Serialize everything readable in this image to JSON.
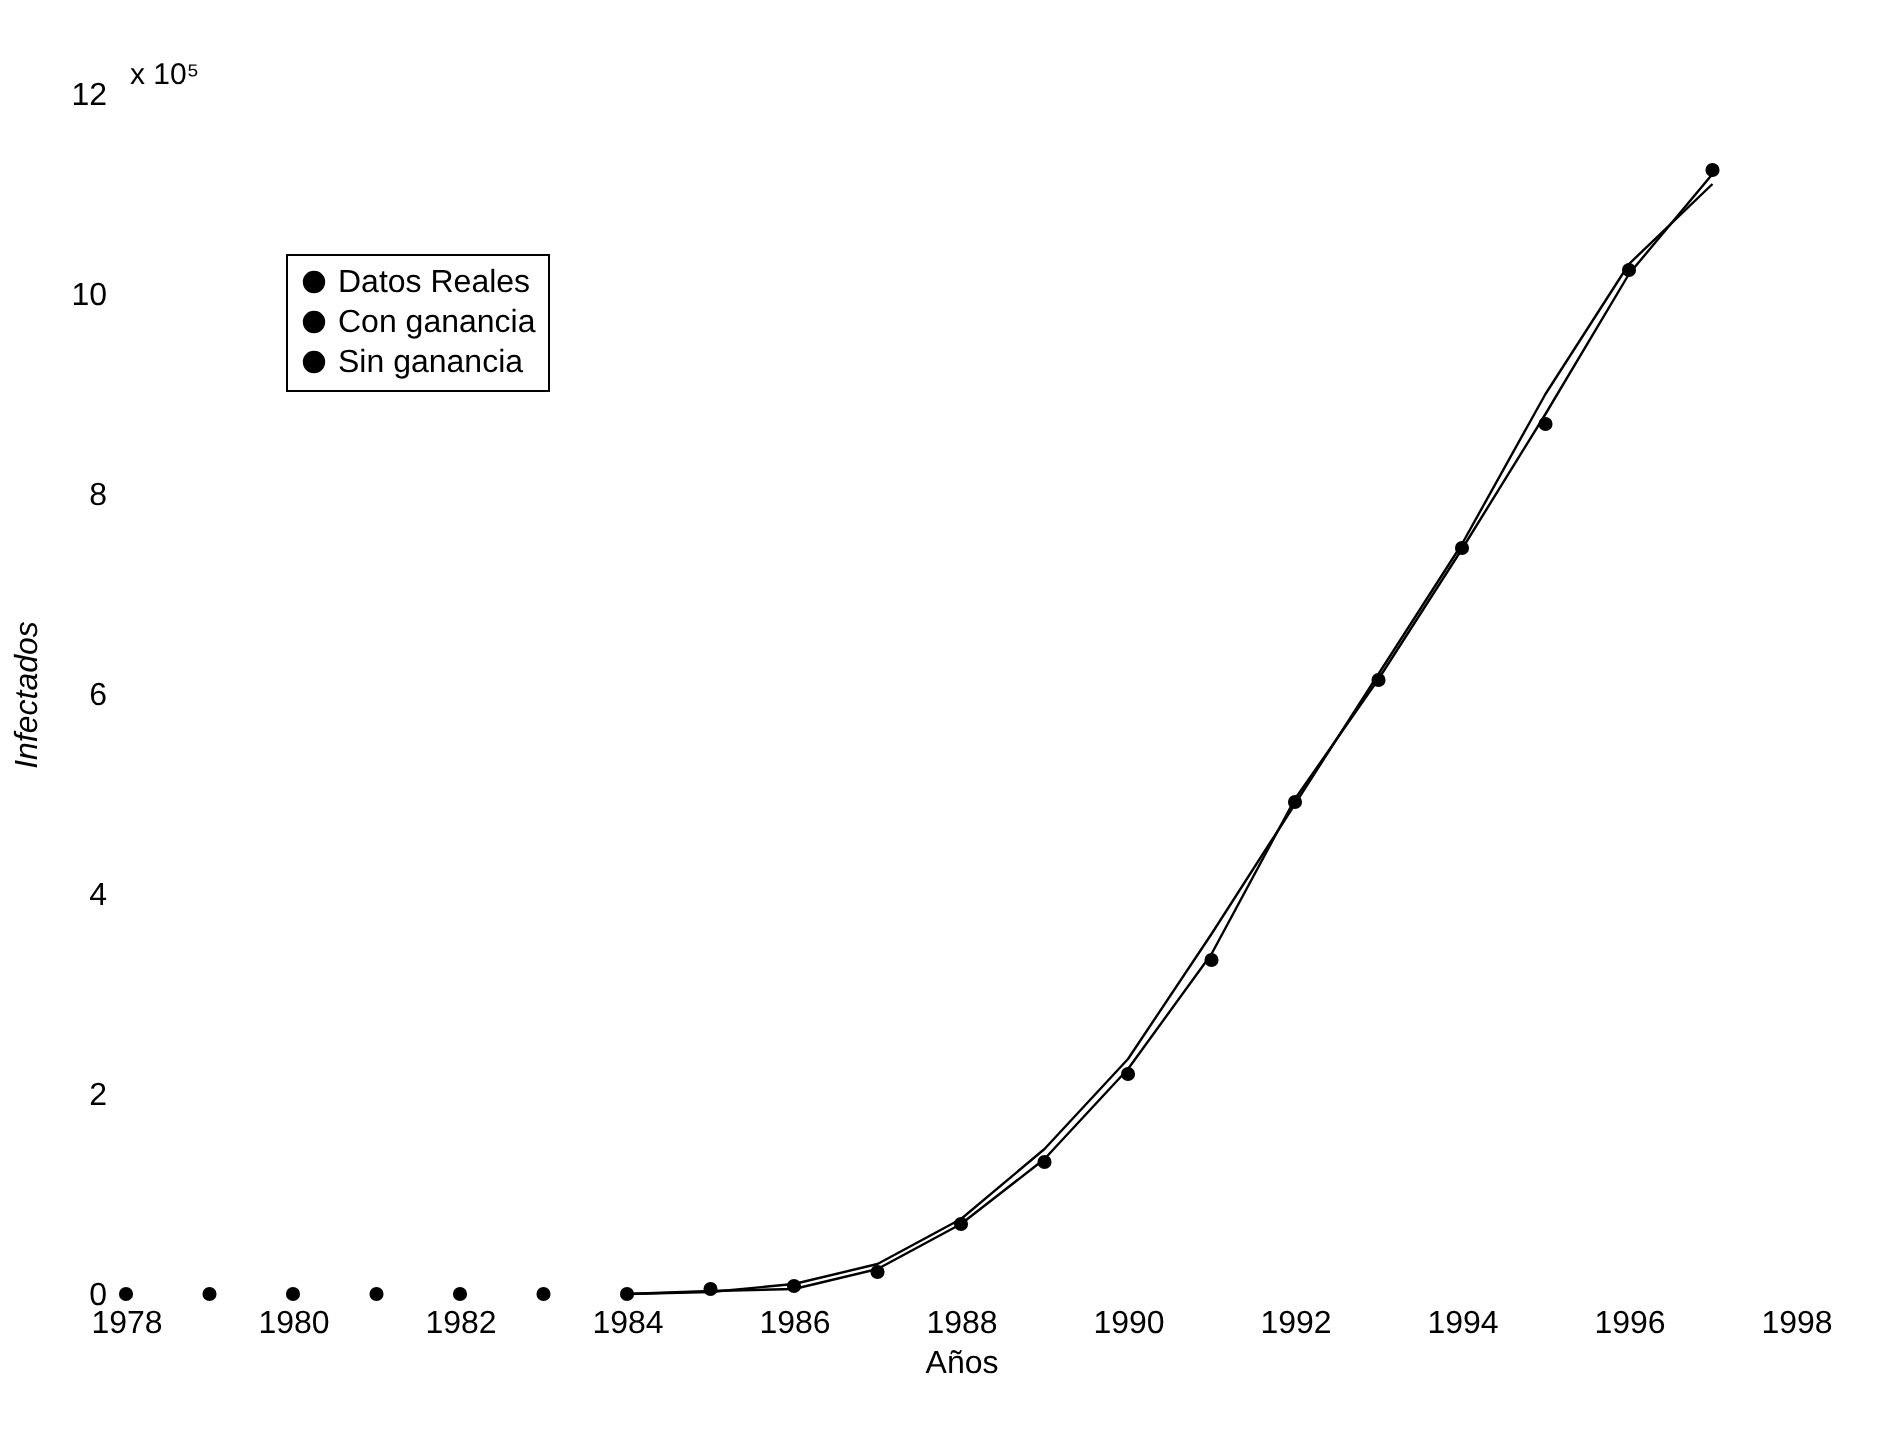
{
  "chart_data": {
    "type": "line",
    "xlabel": "Años",
    "ylabel": "Infectados",
    "annotations": [
      "x 10⁵"
    ],
    "xlim": [
      1978,
      1998
    ],
    "xticks": [
      1978,
      1980,
      1982,
      1984,
      1986,
      1988,
      1990,
      1992,
      1994,
      1996,
      1998
    ],
    "ylim": [
      0,
      12
    ],
    "yticks": [
      0,
      2,
      4,
      6,
      8,
      10,
      12
    ],
    "grid": false,
    "legend": "top left",
    "series": [
      {
        "name": "Datos Reales",
        "type": "scatter",
        "marker": "circle",
        "color": "#000000",
        "x": [
          1978,
          1979,
          1980,
          1981,
          1982,
          1983,
          1984,
          1985,
          1986,
          1987,
          1988,
          1989,
          1990,
          1991,
          1992,
          1993,
          1994,
          1995,
          1996,
          1997
        ],
        "values": [
          0,
          0,
          0,
          0,
          0,
          0,
          0,
          0.05,
          0.08,
          0.22,
          0.7,
          1.32,
          2.2,
          3.34,
          4.92,
          6.14,
          7.46,
          8.7,
          10.24,
          11.24
        ]
      },
      {
        "name": "Con ganancia",
        "color": "#000000",
        "x": [
          1984,
          1985,
          1986,
          1987,
          1988,
          1989,
          1990,
          1991,
          1992,
          1993,
          1994,
          1995,
          1996,
          1997
        ],
        "values": [
          0,
          0.02,
          0.1,
          0.3,
          0.75,
          1.45,
          2.35,
          3.6,
          4.9,
          6.2,
          7.5,
          9.0,
          10.3,
          11.1
        ]
      },
      {
        "name": "Sin ganancia",
        "color": "#000000",
        "x": [
          1984,
          1985,
          1986,
          1987,
          1988,
          1989,
          1990,
          1991,
          1992,
          1993,
          1994,
          1995,
          1996,
          1997
        ],
        "values": [
          0,
          0.03,
          0.05,
          0.25,
          0.7,
          1.35,
          2.25,
          3.4,
          4.95,
          6.15,
          7.45,
          8.8,
          10.2,
          11.2
        ]
      }
    ]
  }
}
